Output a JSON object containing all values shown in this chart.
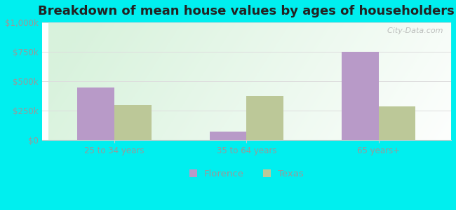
{
  "title": "Breakdown of mean house values by ages of householders",
  "categories": [
    "25 to 34 years",
    "35 to 64 years",
    "65 years+"
  ],
  "florence_values": [
    450000,
    75000,
    750000
  ],
  "texas_values": [
    300000,
    375000,
    290000
  ],
  "florence_color": "#b89ac8",
  "texas_color": "#bcc898",
  "background_color": "#00efef",
  "ylim": [
    0,
    1000000
  ],
  "yticks": [
    0,
    250000,
    500000,
    750000,
    1000000
  ],
  "ytick_labels": [
    "$0",
    "$250k",
    "$500k",
    "$750k",
    "$1,000k"
  ],
  "bar_width": 0.28,
  "legend_labels": [
    "Florence",
    "Texas"
  ],
  "watermark": "  City-Data.com",
  "title_fontsize": 13,
  "tick_color": "#999999",
  "grid_color": "#dddddd"
}
